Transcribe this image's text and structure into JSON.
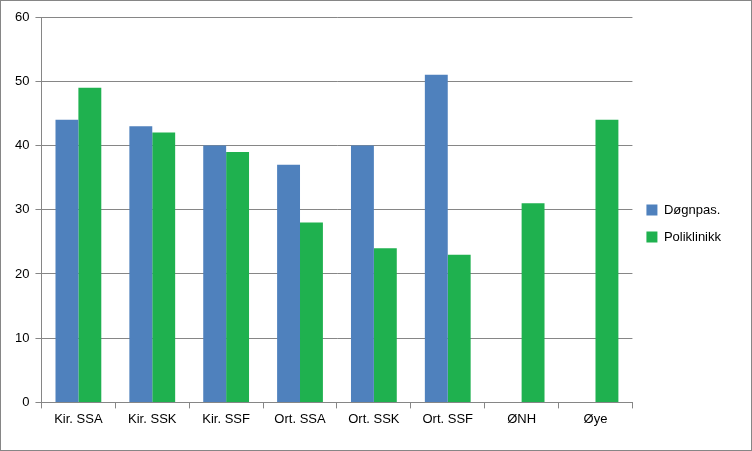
{
  "chart_data": {
    "type": "bar",
    "categories": [
      "Kir. SSA",
      "Kir. SSK",
      "Kir. SSF",
      "Ort. SSA",
      "Ort. SSK",
      "Ort. SSF",
      "ØNH",
      "Øye"
    ],
    "series": [
      {
        "name": "Døgnpas.",
        "color": "#4f81bd",
        "values": [
          44,
          43,
          40,
          37,
          40,
          51,
          null,
          null
        ]
      },
      {
        "name": "Poliklinikk",
        "color": "#1fb14f",
        "values": [
          49,
          42,
          39,
          28,
          24,
          23,
          31,
          44
        ]
      }
    ],
    "ylim": [
      0,
      60
    ],
    "yticks": [
      0,
      10,
      20,
      30,
      40,
      50,
      60
    ],
    "grid": true,
    "legend": "right"
  }
}
